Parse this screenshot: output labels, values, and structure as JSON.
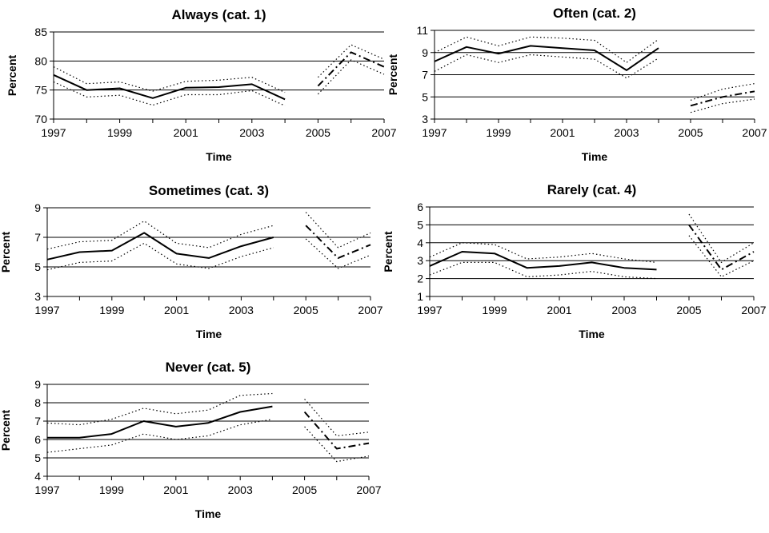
{
  "chart_data": [
    {
      "type": "line",
      "title": "Always (cat. 1)",
      "xlabel": "Time",
      "ylabel": "Percent",
      "xlim": [
        1997,
        2007
      ],
      "ylim": [
        70,
        85
      ],
      "yticks": [
        70,
        75,
        80,
        85
      ],
      "xticks": [
        1997,
        1999,
        2001,
        2003,
        2005,
        2007
      ],
      "grid": true,
      "series": [
        {
          "style": "solid",
          "x": [
            1997,
            1998,
            1999,
            2000,
            2001,
            2002,
            2003,
            2004
          ],
          "values": [
            77.6,
            75.0,
            75.3,
            73.6,
            75.4,
            75.5,
            76.0,
            73.4
          ]
        },
        {
          "style": "dotted",
          "x": [
            1997,
            1998,
            1999,
            2000,
            2001,
            2002,
            2003,
            2004
          ],
          "values": [
            79.0,
            76.1,
            76.4,
            74.8,
            76.5,
            76.7,
            77.2,
            74.6
          ]
        },
        {
          "style": "dotted",
          "x": [
            1997,
            1998,
            1999,
            2000,
            2001,
            2002,
            2003,
            2004
          ],
          "values": [
            76.4,
            73.8,
            74.1,
            72.4,
            74.2,
            74.2,
            74.9,
            72.3
          ]
        },
        {
          "style": "dashdot",
          "x": [
            2005,
            2006,
            2007
          ],
          "values": [
            75.7,
            81.5,
            79.0
          ]
        },
        {
          "style": "dotted",
          "x": [
            2005,
            2006,
            2007
          ],
          "values": [
            77.2,
            82.8,
            80.3
          ]
        },
        {
          "style": "dotted",
          "x": [
            2005,
            2006,
            2007
          ],
          "values": [
            74.3,
            80.2,
            77.7
          ]
        }
      ]
    },
    {
      "type": "line",
      "title": "Often (cat. 2)",
      "xlabel": "Time",
      "ylabel": "Percent",
      "xlim": [
        1997,
        2007
      ],
      "ylim": [
        3,
        11
      ],
      "yticks": [
        3,
        5,
        7,
        9,
        11
      ],
      "xticks": [
        1997,
        1999,
        2001,
        2003,
        2005,
        2007
      ],
      "grid": true,
      "series": [
        {
          "style": "solid",
          "x": [
            1997,
            1998,
            1999,
            2000,
            2001,
            2002,
            2003,
            2004
          ],
          "values": [
            8.2,
            9.5,
            8.9,
            9.6,
            9.4,
            9.2,
            7.4,
            9.4
          ]
        },
        {
          "style": "dotted",
          "x": [
            1997,
            1998,
            1999,
            2000,
            2001,
            2002,
            2003,
            2004
          ],
          "values": [
            9.0,
            10.4,
            9.6,
            10.4,
            10.3,
            10.1,
            8.1,
            10.2
          ]
        },
        {
          "style": "dotted",
          "x": [
            1997,
            1998,
            1999,
            2000,
            2001,
            2002,
            2003,
            2004
          ],
          "values": [
            7.3,
            8.8,
            8.1,
            8.8,
            8.6,
            8.4,
            6.7,
            8.5
          ]
        },
        {
          "style": "dashdot",
          "x": [
            2005,
            2006,
            2007
          ],
          "values": [
            4.2,
            5.0,
            5.5
          ]
        },
        {
          "style": "dotted",
          "x": [
            2005,
            2006,
            2007
          ],
          "values": [
            4.7,
            5.7,
            6.2
          ]
        },
        {
          "style": "dotted",
          "x": [
            2005,
            2006,
            2007
          ],
          "values": [
            3.6,
            4.4,
            4.8
          ]
        }
      ]
    },
    {
      "type": "line",
      "title": "Sometimes (cat. 3)",
      "xlabel": "Time",
      "ylabel": "Percent",
      "xlim": [
        1997,
        2007
      ],
      "ylim": [
        3,
        9
      ],
      "yticks": [
        3,
        5,
        7,
        9
      ],
      "xticks": [
        1997,
        1999,
        2001,
        2003,
        2005,
        2007
      ],
      "grid": true,
      "series": [
        {
          "style": "solid",
          "x": [
            1997,
            1998,
            1999,
            2000,
            2001,
            2002,
            2003,
            2004
          ],
          "values": [
            5.5,
            6.0,
            6.1,
            7.3,
            5.9,
            5.6,
            6.4,
            7.0
          ]
        },
        {
          "style": "dotted",
          "x": [
            1997,
            1998,
            1999,
            2000,
            2001,
            2002,
            2003,
            2004
          ],
          "values": [
            6.2,
            6.7,
            6.8,
            8.1,
            6.6,
            6.3,
            7.2,
            7.8
          ]
        },
        {
          "style": "dotted",
          "x": [
            1997,
            1998,
            1999,
            2000,
            2001,
            2002,
            2003,
            2004
          ],
          "values": [
            4.8,
            5.3,
            5.4,
            6.6,
            5.2,
            4.9,
            5.7,
            6.3
          ]
        },
        {
          "style": "dashdot",
          "x": [
            2005,
            2006,
            2007
          ],
          "values": [
            7.8,
            5.6,
            6.5
          ]
        },
        {
          "style": "dotted",
          "x": [
            2005,
            2006,
            2007
          ],
          "values": [
            8.7,
            6.3,
            7.3
          ]
        },
        {
          "style": "dotted",
          "x": [
            2005,
            2006,
            2007
          ],
          "values": [
            6.9,
            4.9,
            5.8
          ]
        }
      ]
    },
    {
      "type": "line",
      "title": "Rarely (cat. 4)",
      "xlabel": "Time",
      "ylabel": "Percent",
      "xlim": [
        1997,
        2007
      ],
      "ylim": [
        1,
        6
      ],
      "yticks": [
        1,
        2,
        3,
        4,
        5,
        6
      ],
      "xticks": [
        1997,
        1999,
        2001,
        2003,
        2005,
        2007
      ],
      "grid": true,
      "series": [
        {
          "style": "solid",
          "x": [
            1997,
            1998,
            1999,
            2000,
            2001,
            2002,
            2003,
            2004
          ],
          "values": [
            2.7,
            3.5,
            3.4,
            2.6,
            2.7,
            2.9,
            2.6,
            2.5
          ]
        },
        {
          "style": "dotted",
          "x": [
            1997,
            1998,
            1999,
            2000,
            2001,
            2002,
            2003,
            2004
          ],
          "values": [
            3.2,
            4.0,
            3.9,
            3.1,
            3.2,
            3.4,
            3.1,
            2.9
          ]
        },
        {
          "style": "dotted",
          "x": [
            1997,
            1998,
            1999,
            2000,
            2001,
            2002,
            2003,
            2004
          ],
          "values": [
            2.2,
            2.9,
            2.9,
            2.1,
            2.2,
            2.4,
            2.1,
            2.0
          ]
        },
        {
          "style": "dashdot",
          "x": [
            2005,
            2006,
            2007
          ],
          "values": [
            5.0,
            2.5,
            3.5
          ]
        },
        {
          "style": "dotted",
          "x": [
            2005,
            2006,
            2007
          ],
          "values": [
            5.6,
            2.9,
            4.0
          ]
        },
        {
          "style": "dotted",
          "x": [
            2005,
            2006,
            2007
          ],
          "values": [
            4.4,
            2.1,
            3.0
          ]
        }
      ]
    },
    {
      "type": "line",
      "title": "Never (cat. 5)",
      "xlabel": "Time",
      "ylabel": "Percent",
      "xlim": [
        1997,
        2007
      ],
      "ylim": [
        4,
        9
      ],
      "yticks": [
        4,
        5,
        6,
        7,
        8,
        9
      ],
      "xticks": [
        1997,
        1999,
        2001,
        2003,
        2005,
        2007
      ],
      "grid": true,
      "series": [
        {
          "style": "solid",
          "x": [
            1997,
            1998,
            1999,
            2000,
            2001,
            2002,
            2003,
            2004
          ],
          "values": [
            6.1,
            6.1,
            6.3,
            7.0,
            6.7,
            6.9,
            7.5,
            7.8
          ]
        },
        {
          "style": "dotted",
          "x": [
            1997,
            1998,
            1999,
            2000,
            2001,
            2002,
            2003,
            2004
          ],
          "values": [
            6.9,
            6.8,
            7.1,
            7.7,
            7.4,
            7.6,
            8.4,
            8.5
          ]
        },
        {
          "style": "dotted",
          "x": [
            1997,
            1998,
            1999,
            2000,
            2001,
            2002,
            2003,
            2004
          ],
          "values": [
            5.3,
            5.5,
            5.7,
            6.3,
            6.0,
            6.2,
            6.8,
            7.1
          ]
        },
        {
          "style": "dashdot",
          "x": [
            2005,
            2006,
            2007
          ],
          "values": [
            7.5,
            5.5,
            5.8
          ]
        },
        {
          "style": "dotted",
          "x": [
            2005,
            2006,
            2007
          ],
          "values": [
            8.2,
            6.2,
            6.4
          ]
        },
        {
          "style": "dotted",
          "x": [
            2005,
            2006,
            2007
          ],
          "values": [
            6.7,
            4.8,
            5.1
          ]
        }
      ]
    }
  ]
}
